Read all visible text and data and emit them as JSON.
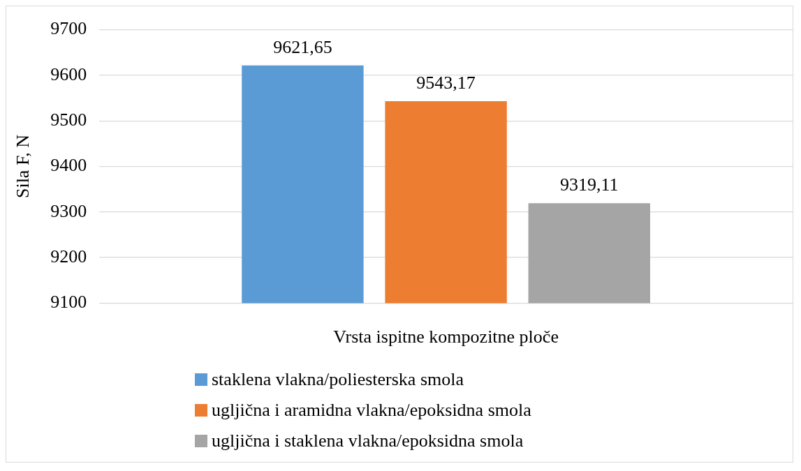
{
  "chart_data": {
    "type": "bar",
    "ylabel": "Sila F, N",
    "xlabel": "Vrsta ispitne kompozitne ploče",
    "categories": [
      null
    ],
    "series": [
      {
        "name": "staklena vlakna/poliesterska smola",
        "color": "#5b9bd5",
        "values": [
          9621.65
        ],
        "value_labels": [
          "9621,65"
        ]
      },
      {
        "name": "ugljična i aramidna vlakna/epoksidna smola",
        "color": "#ed7d31",
        "values": [
          9543.17
        ],
        "value_labels": [
          "9543,17"
        ]
      },
      {
        "name": "ugljična i staklena vlakna/epoksidna smola",
        "color": "#a5a5a5",
        "values": [
          9319.11
        ],
        "value_labels": [
          "9319,11"
        ]
      }
    ],
    "ylim": [
      9100,
      9700
    ],
    "yticks": [
      9100,
      9200,
      9300,
      9400,
      9500,
      9600,
      9700
    ],
    "grid": "y",
    "legend": "bottom"
  }
}
